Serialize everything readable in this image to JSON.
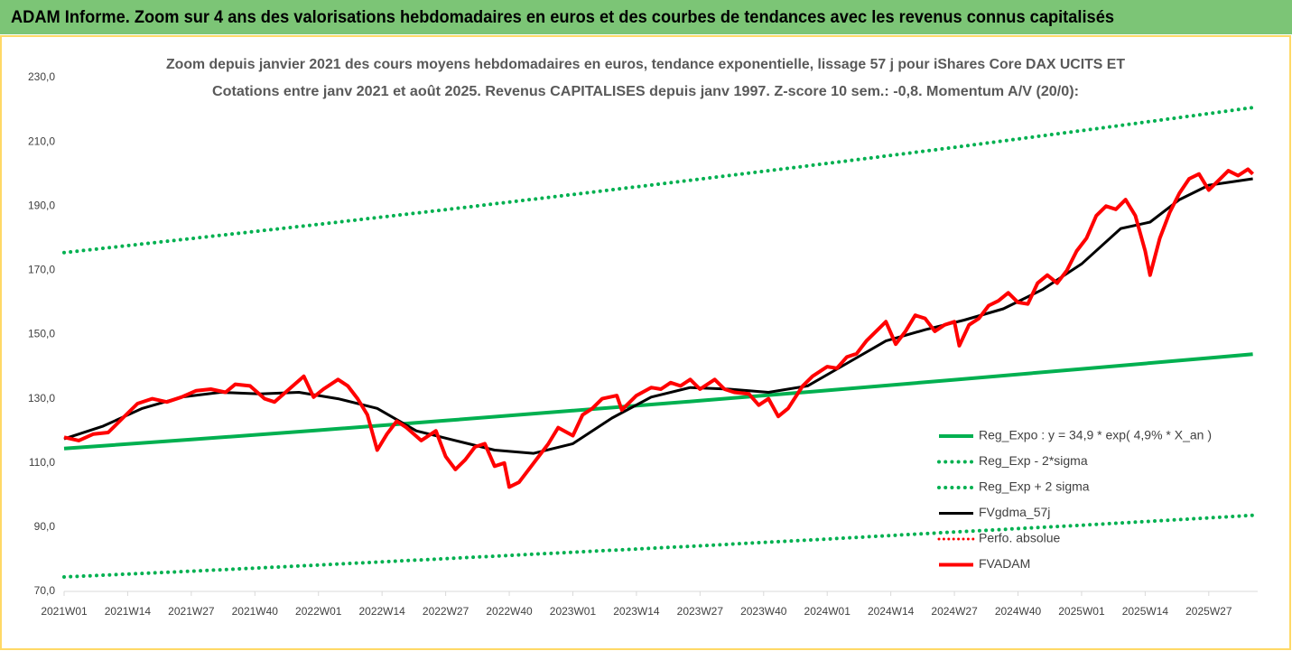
{
  "header": {
    "title": "ADAM Informe. Zoom sur 4 ans des valorisations hebdomadaires en euros et des courbes de tendances avec les revenus connus capitalisés"
  },
  "chart_data": {
    "type": "line",
    "title": "Zoom depuis janvier 2021 des cours moyens hebdomadaires en euros, tendance exponentielle, lissage 57 j pour iShares Core DAX UCITS ET",
    "subtitle": "Cotations entre janv 2021 et août 2025.  Revenus CAPITALISES depuis janv 1997. Z-score 10 sem.: -0,8. Momentum A/V (20/0):",
    "xlim": [
      0,
      244
    ],
    "xticks": [
      {
        "value": 0,
        "label": "2021W01"
      },
      {
        "value": 13,
        "label": "2021W14"
      },
      {
        "value": 26,
        "label": "2021W27"
      },
      {
        "value": 39,
        "label": "2021W40"
      },
      {
        "value": 52,
        "label": "2022W01"
      },
      {
        "value": 65,
        "label": "2022W14"
      },
      {
        "value": 78,
        "label": "2022W27"
      },
      {
        "value": 91,
        "label": "2022W40"
      },
      {
        "value": 104,
        "label": "2023W01"
      },
      {
        "value": 117,
        "label": "2023W14"
      },
      {
        "value": 130,
        "label": "2023W27"
      },
      {
        "value": 143,
        "label": "2023W40"
      },
      {
        "value": 156,
        "label": "2024W01"
      },
      {
        "value": 169,
        "label": "2024W14"
      },
      {
        "value": 182,
        "label": "2024W27"
      },
      {
        "value": 195,
        "label": "2024W40"
      },
      {
        "value": 208,
        "label": "2025W01"
      },
      {
        "value": 221,
        "label": "2025W14"
      },
      {
        "value": 234,
        "label": "2025W27"
      }
    ],
    "ylim": [
      70,
      230
    ],
    "yticks": [
      {
        "value": 70,
        "label": "70,0"
      },
      {
        "value": 90,
        "label": "90,0"
      },
      {
        "value": 110,
        "label": "110,0"
      },
      {
        "value": 130,
        "label": "130,0"
      },
      {
        "value": 150,
        "label": "150,0"
      },
      {
        "value": 170,
        "label": "170,0"
      },
      {
        "value": 190,
        "label": "190,0"
      },
      {
        "value": 210,
        "label": "210,0"
      },
      {
        "value": 230,
        "label": "230,0"
      }
    ],
    "grid": false,
    "legend": "lower-right",
    "series": [
      {
        "name": "Reg_Expo : y = 34,9 * exp( 4,9% *  X_an )",
        "color": "#00b050",
        "style": "solid",
        "width": 4,
        "x": [
          0,
          26,
          52,
          78,
          104,
          130,
          156,
          182,
          208,
          234,
          243
        ],
        "values": [
          114.5,
          117.3,
          120.2,
          123.2,
          126.3,
          129.4,
          132.6,
          135.9,
          139.3,
          142.7,
          143.9
        ]
      },
      {
        "name": "Reg_Exp - 2*sigma",
        "color": "#00b050",
        "style": "dotted",
        "width": 4,
        "x": [
          0,
          26,
          52,
          78,
          104,
          130,
          156,
          182,
          208,
          234,
          243
        ],
        "values": [
          74.5,
          76.3,
          78.2,
          80.2,
          82.2,
          84.2,
          86.3,
          88.5,
          90.6,
          92.9,
          93.7
        ]
      },
      {
        "name": "Reg_Exp + 2 sigma",
        "color": "#00b050",
        "style": "dotted",
        "width": 4,
        "x": [
          0,
          26,
          52,
          78,
          104,
          130,
          156,
          182,
          208,
          234,
          243
        ],
        "values": [
          175.5,
          179.9,
          184.3,
          188.9,
          193.6,
          198.4,
          203.3,
          208.3,
          213.5,
          218.8,
          220.7
        ]
      },
      {
        "name": "FVgdma_57j",
        "color": "#000000",
        "style": "solid",
        "width": 3,
        "x": [
          0,
          8,
          16,
          24,
          32,
          40,
          48,
          56,
          64,
          72,
          80,
          88,
          96,
          104,
          112,
          120,
          128,
          136,
          144,
          152,
          160,
          168,
          176,
          184,
          192,
          200,
          208,
          216,
          222,
          228,
          234,
          243
        ],
        "values": [
          117.5,
          121.5,
          127,
          130.5,
          132,
          131.5,
          132,
          130,
          127,
          120,
          117,
          114,
          113,
          116,
          124,
          130.5,
          133.5,
          133,
          132,
          134,
          141,
          148,
          151.5,
          154.5,
          158,
          164,
          172,
          183,
          185,
          192,
          196.5,
          198.5
        ]
      },
      {
        "name": "Perfo. absolue",
        "color": "#ff0000",
        "style": "dotted",
        "width": 3,
        "x": [],
        "values": []
      },
      {
        "name": "FVADAM",
        "color": "#ff0000",
        "style": "solid",
        "width": 4,
        "x": [
          0,
          3,
          6,
          9,
          12,
          15,
          18,
          21,
          24,
          27,
          30,
          33,
          35,
          38,
          41,
          43,
          46,
          49,
          51,
          53,
          56,
          58,
          60,
          62,
          64,
          66,
          68,
          70,
          73,
          76,
          78,
          80,
          82,
          84,
          86,
          88,
          90,
          91,
          93,
          96,
          99,
          101,
          104,
          106,
          108,
          110,
          113,
          114,
          117,
          120,
          122,
          124,
          126,
          128,
          130,
          133,
          135,
          137,
          140,
          142,
          144,
          146,
          148,
          151,
          153,
          156,
          158,
          160,
          162,
          164,
          166,
          168,
          170,
          172,
          174,
          176,
          178,
          180,
          182,
          183,
          185,
          187,
          189,
          191,
          193,
          195,
          197,
          199,
          201,
          203,
          205,
          207,
          209,
          211,
          213,
          215,
          217,
          219,
          221,
          222,
          224,
          226,
          228,
          230,
          232,
          234,
          236,
          238,
          240,
          242,
          243
        ],
        "values": [
          118,
          117,
          119,
          119.5,
          124,
          128.5,
          130,
          129,
          130.5,
          132.5,
          133,
          132,
          134.5,
          134,
          130,
          129,
          133,
          137,
          130.5,
          133,
          136,
          134,
          130,
          125,
          114,
          119,
          123,
          121,
          117,
          120,
          112,
          108,
          111,
          115,
          116,
          109,
          110,
          102.5,
          104,
          110,
          116,
          121,
          118.5,
          125,
          127,
          130,
          131,
          126.5,
          131,
          133.5,
          133,
          135,
          134,
          136,
          133,
          136,
          133,
          132,
          131.5,
          128,
          130,
          124.5,
          127,
          134,
          137,
          140,
          139.5,
          143,
          144,
          148,
          151,
          154,
          147,
          151,
          156,
          155,
          151,
          153,
          154,
          146.5,
          153,
          155,
          159,
          160.5,
          163,
          160,
          159.5,
          166,
          168.5,
          166,
          170,
          176,
          180,
          187,
          190,
          189,
          192,
          187,
          176,
          168.5,
          180,
          188,
          194,
          198.5,
          200,
          195,
          198,
          201,
          199.5,
          201.5,
          200
        ]
      }
    ]
  }
}
